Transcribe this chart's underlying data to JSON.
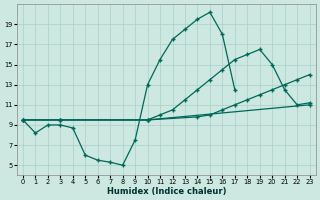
{
  "xlabel": "Humidex (Indice chaleur)",
  "xlim": [
    -0.5,
    23.5
  ],
  "ylim": [
    4,
    21
  ],
  "yticks": [
    5,
    7,
    9,
    11,
    13,
    15,
    17,
    19
  ],
  "xticks": [
    0,
    1,
    2,
    3,
    4,
    5,
    6,
    7,
    8,
    9,
    10,
    11,
    12,
    13,
    14,
    15,
    16,
    17,
    18,
    19,
    20,
    21,
    22,
    23
  ],
  "bg_color": "#cce8e0",
  "grid_color": "#aacfc8",
  "line_color": "#006858",
  "series": [
    {
      "x": [
        0,
        1,
        2,
        3,
        4,
        5,
        6,
        7,
        8,
        9,
        10,
        11,
        12,
        13,
        14,
        15,
        16,
        17
      ],
      "y": [
        9.5,
        8.2,
        9.0,
        9.0,
        8.7,
        6.0,
        5.5,
        5.3,
        5.0,
        7.5,
        13.0,
        15.5,
        17.5,
        18.5,
        19.5,
        20.2,
        18.0,
        12.5
      ]
    },
    {
      "x": [
        0,
        3,
        10,
        11,
        12,
        13,
        14,
        15,
        16,
        17,
        18,
        19,
        20,
        21,
        22,
        23
      ],
      "y": [
        9.5,
        9.5,
        9.5,
        10.0,
        10.5,
        11.5,
        12.5,
        13.5,
        14.5,
        15.5,
        16.0,
        16.5,
        15.0,
        12.5,
        11.0,
        11.2
      ]
    },
    {
      "x": [
        0,
        3,
        10,
        14,
        15,
        16,
        17,
        18,
        19,
        20,
        21,
        22,
        23
      ],
      "y": [
        9.5,
        9.5,
        9.5,
        9.8,
        10.0,
        10.5,
        11.0,
        11.5,
        12.0,
        12.5,
        13.0,
        13.5,
        14.0
      ]
    },
    {
      "x": [
        0,
        3,
        10,
        23
      ],
      "y": [
        9.5,
        9.5,
        9.5,
        11.0
      ]
    }
  ]
}
